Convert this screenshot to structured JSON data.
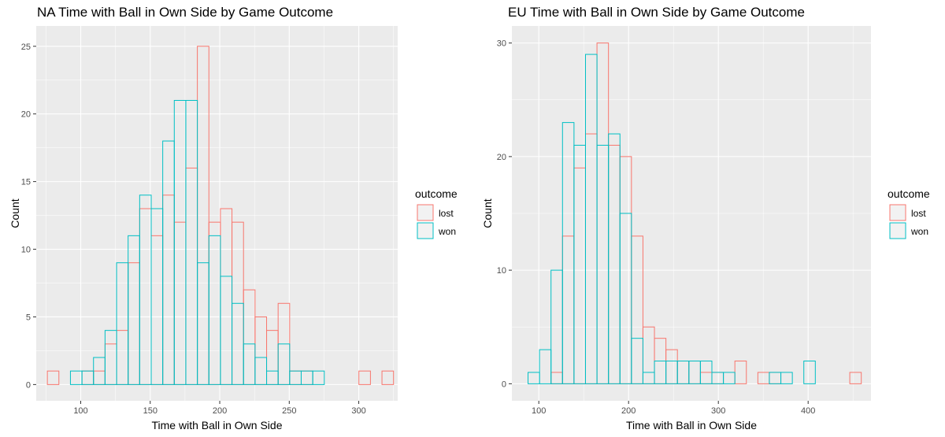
{
  "chart_data": [
    {
      "type": "bar",
      "title": "NA Time with Ball in Own Side by Game Outcome",
      "xlabel": "Time with Ball in Own Side",
      "ylabel": "Count",
      "xlim": [
        68,
        328
      ],
      "ylim": [
        -1.2,
        26.5
      ],
      "xticks": [
        100,
        150,
        200,
        250,
        300
      ],
      "yticks": [
        0,
        5,
        10,
        15,
        20,
        25
      ],
      "bin_width": 8.3,
      "bin_start": 76,
      "grid": true,
      "legend_title": "outcome",
      "legend_position": "right",
      "series": [
        {
          "name": "lost",
          "color": "#F8766D",
          "values": [
            1,
            0,
            0,
            1,
            1,
            3,
            4,
            9,
            13,
            11,
            14,
            12,
            16,
            25,
            12,
            13,
            12,
            7,
            5,
            4,
            6,
            1,
            1,
            0,
            0,
            0,
            0,
            1,
            0,
            1
          ]
        },
        {
          "name": "won",
          "color": "#00BFC4",
          "values": [
            0,
            0,
            1,
            1,
            2,
            4,
            9,
            11,
            14,
            13,
            18,
            21,
            21,
            9,
            11,
            8,
            6,
            3,
            2,
            1,
            3,
            1,
            1,
            1,
            0,
            0,
            0,
            0,
            0,
            0
          ]
        }
      ]
    },
    {
      "type": "bar",
      "title": "EU Time with Ball in Own Side by Game Outcome",
      "xlabel": "Time with Ball in Own Side",
      "ylabel": "Count",
      "xlim": [
        70,
        470
      ],
      "ylim": [
        -1.5,
        31.5
      ],
      "xticks": [
        100,
        200,
        300,
        400
      ],
      "yticks": [
        0,
        10,
        20,
        30
      ],
      "bin_width": 12.8,
      "bin_start": 88,
      "grid": true,
      "legend_title": "outcome",
      "legend_position": "right",
      "series": [
        {
          "name": "lost",
          "color": "#F8766D",
          "values": [
            0,
            0,
            1,
            13,
            19,
            22,
            30,
            21,
            20,
            13,
            5,
            4,
            3,
            2,
            2,
            1,
            1,
            0,
            2,
            0,
            1,
            1,
            0,
            0,
            0,
            0,
            0,
            0,
            1
          ]
        },
        {
          "name": "won",
          "color": "#00BFC4",
          "values": [
            1,
            3,
            10,
            23,
            21,
            29,
            21,
            22,
            15,
            4,
            1,
            2,
            2,
            2,
            2,
            2,
            1,
            1,
            0,
            0,
            0,
            1,
            1,
            0,
            2,
            0,
            0,
            0,
            0
          ]
        }
      ]
    }
  ]
}
